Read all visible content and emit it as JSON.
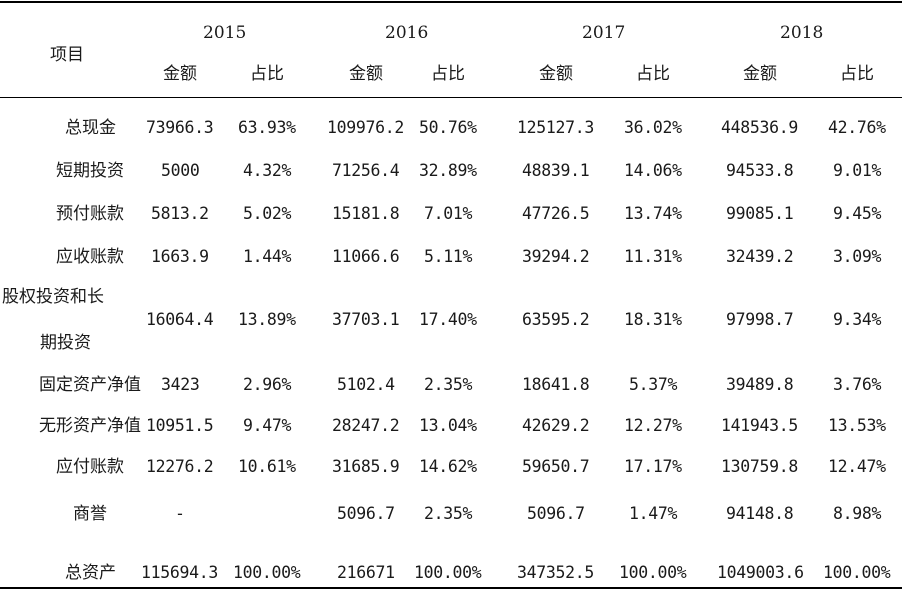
{
  "table": {
    "item_header": "项目",
    "years": [
      "2015",
      "2016",
      "2017",
      "2018"
    ],
    "amount_header": "金额",
    "ratio_header": "占比",
    "rows": [
      {
        "label": "总现金",
        "values": [
          "73966.3",
          "63.93%",
          "109976.2",
          "50.76%",
          "125127.3",
          "36.02%",
          "448536.9",
          "42.76%"
        ]
      },
      {
        "label": "短期投资",
        "values": [
          "5000",
          "4.32%",
          "71256.4",
          "32.89%",
          "48839.1",
          "14.06%",
          "94533.8",
          "9.01%"
        ]
      },
      {
        "label": "预付账款",
        "values": [
          "5813.2",
          "5.02%",
          "15181.8",
          "7.01%",
          "47726.5",
          "13.74%",
          "99085.1",
          "9.45%"
        ]
      },
      {
        "label": "应收账款",
        "values": [
          "1663.9",
          "1.44%",
          "11066.6",
          "5.11%",
          "39294.2",
          "11.31%",
          "32439.2",
          "3.09%"
        ]
      },
      {
        "label_line1": "股权投资和长",
        "label_line2": "期投资",
        "values": [
          "16064.4",
          "13.89%",
          "37703.1",
          "17.40%",
          "63595.2",
          "18.31%",
          "97998.7",
          "9.34%"
        ]
      },
      {
        "label": "固定资产净值",
        "values": [
          "3423",
          "2.96%",
          "5102.4",
          "2.35%",
          "18641.8",
          "5.37%",
          "39489.8",
          "3.76%"
        ]
      },
      {
        "label": "无形资产净值",
        "values": [
          "10951.5",
          "9.47%",
          "28247.2",
          "13.04%",
          "42629.2",
          "12.27%",
          "141943.5",
          "13.53%"
        ]
      },
      {
        "label": "应付账款",
        "values": [
          "12276.2",
          "10.61%",
          "31685.9",
          "14.62%",
          "59650.7",
          "17.17%",
          "130759.8",
          "12.47%"
        ]
      },
      {
        "label": "商誉",
        "values": [
          "-",
          "",
          "5096.7",
          "2.35%",
          "5096.7",
          "1.47%",
          "94148.8",
          "8.98%"
        ]
      },
      {
        "label": "总资产",
        "values": [
          "115694.3",
          "100.00%",
          "216671",
          "100.00%",
          "347352.5",
          "100.00%",
          "1049003.6",
          "100.00%"
        ]
      }
    ]
  }
}
